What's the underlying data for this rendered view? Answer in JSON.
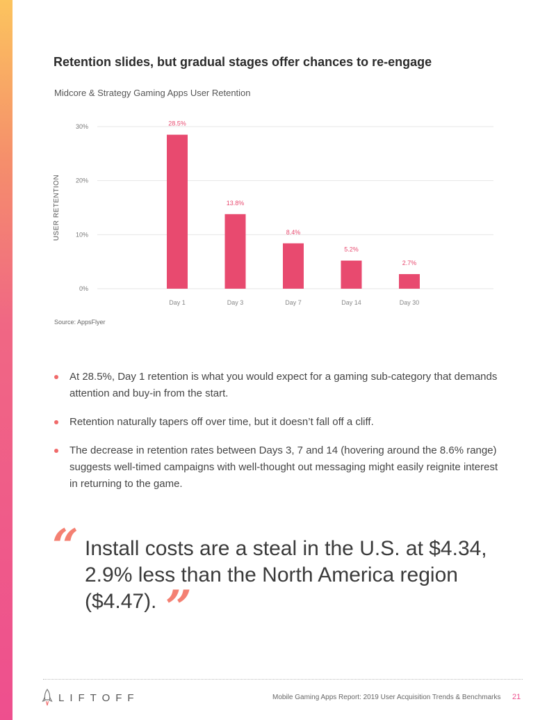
{
  "page": {
    "title": "Retention slides, but gradual stages offer chances to re-engage",
    "source": "Source: AppsFlyer",
    "bullets": [
      "At 28.5%, Day 1 retention is what you would expect for a gaming sub-category that demands attention and buy-in from the start.",
      "Retention naturally tapers off over time, but it doesn’t fall off a cliff.",
      "The decrease in retention rates between Days 3, 7 and 14 (hovering around the 8.6% range) suggests well-timed campaigns with well-thought out messaging might easily reignite interest in returning to the game."
    ],
    "quote": {
      "open_mark": "“",
      "text": "Install costs are a steal in the U.S. at $4.34, 2.9% less than the North America region ($4.47).",
      "close_mark": "”"
    }
  },
  "footer": {
    "logo_text": "LIFTOFF",
    "report_title": "Mobile Gaming Apps Report: 2019 User Acquisition Trends & Benchmarks",
    "page_number": "21"
  },
  "colors": {
    "bar": "#e84a6f",
    "label": "#e84a6f",
    "accent": "#ee4f8e",
    "quote": "#f48072"
  },
  "chart_data": {
    "type": "bar",
    "title": "Midcore & Strategy Gaming Apps User Retention",
    "xlabel": "",
    "ylabel": "USER RETENTION",
    "categories": [
      "Day 1",
      "Day 3",
      "Day 7",
      "Day 14",
      "Day 30"
    ],
    "values": [
      28.5,
      13.8,
      8.4,
      5.2,
      2.7
    ],
    "data_labels": [
      "28.5%",
      "13.8%",
      "8.4%",
      "5.2%",
      "2.7%"
    ],
    "ylim": [
      0,
      30
    ],
    "yticks": [
      0,
      10,
      20,
      30
    ],
    "ytick_labels": [
      "0%",
      "10%",
      "20%",
      "30%"
    ],
    "grid": true
  }
}
